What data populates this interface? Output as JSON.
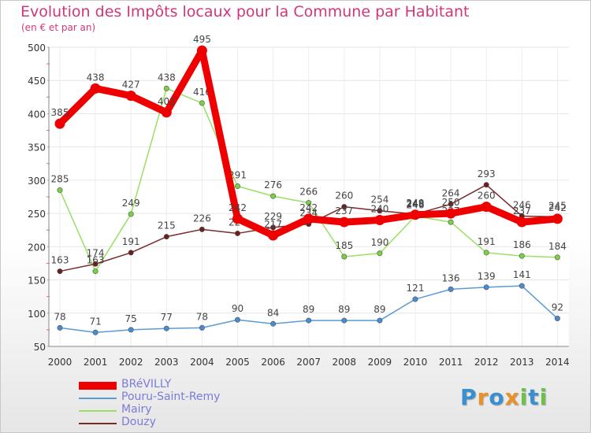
{
  "chart_data": {
    "type": "line",
    "title": "Evolution des Impôts locaux pour la Commune par Habitant",
    "subtitle": "(en € et par an)",
    "xlabel": "",
    "ylabel": "",
    "ylim": [
      50,
      500
    ],
    "yticks": [
      50,
      100,
      150,
      200,
      250,
      300,
      350,
      400,
      450,
      500
    ],
    "categories": [
      "2000",
      "2001",
      "2002",
      "2003",
      "2004",
      "2005",
      "2006",
      "2007",
      "2008",
      "2009",
      "2010",
      "2011",
      "2012",
      "2013",
      "2014"
    ],
    "grid": true,
    "legend_position": "bottom-left",
    "series": [
      {
        "name": "Pouru-Saint-Remy",
        "color": "#5b9bd5",
        "point_color": "#4a8ad0",
        "values": [
          78,
          71,
          75,
          77,
          78,
          90,
          84,
          89,
          89,
          89,
          121,
          136,
          139,
          141,
          92
        ]
      },
      {
        "name": "Mairy",
        "color": "#99e064",
        "point_color": "#7ad043",
        "values": [
          285,
          163,
          249,
          438,
          416,
          291,
          276,
          266,
          185,
          190,
          246,
          237,
          191,
          186,
          184
        ]
      },
      {
        "name": "Douzy",
        "color": "#7b2a2a",
        "point_color": "#6a1f1f",
        "values": [
          163,
          174,
          191,
          215,
          226,
          220,
          229,
          234,
          260,
          254,
          249,
          264,
          293,
          246,
          245
        ]
      },
      {
        "name": "BRéVILLY",
        "color": "#ee0000",
        "point_color": "#ee0000",
        "values": [
          385,
          438,
          427,
          402,
          495,
          242,
          217,
          242,
          237,
          240,
          248,
          250,
          260,
          237,
          242
        ]
      }
    ],
    "legend_order": [
      "BRéVILLY",
      "Pouru-Saint-Remy",
      "Mairy",
      "Douzy"
    ]
  },
  "logo": {
    "text": "Proxiti",
    "letters": [
      "P",
      "r",
      "o",
      "x",
      "i",
      "t",
      "i"
    ],
    "colors": [
      "#3a8fd0",
      "#e8902a",
      "#3a8fd0",
      "#e8902a",
      "#6cc14a",
      "#3a8fd0",
      "#6cc14a"
    ]
  }
}
